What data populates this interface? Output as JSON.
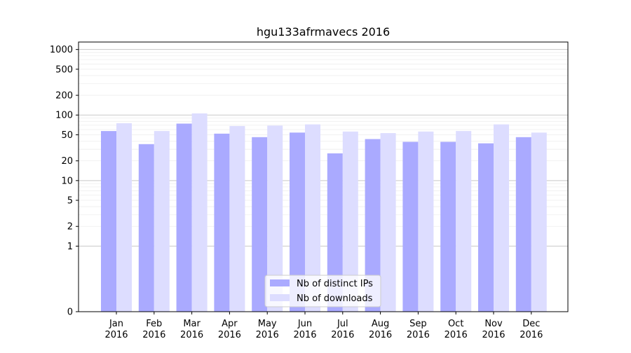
{
  "chart_data": {
    "type": "bar",
    "title": "hgu133afrmavecs 2016",
    "xlabel": "",
    "ylabel": "",
    "y_scale": "symlog",
    "ylim": [
      0,
      1300
    ],
    "y_ticks": [
      0,
      1,
      2,
      5,
      10,
      20,
      50,
      100,
      200,
      500,
      1000
    ],
    "y_tick_labels": [
      "0",
      "1",
      "2",
      "5",
      "10",
      "20",
      "50",
      "100",
      "200",
      "500",
      "1000"
    ],
    "grid": true,
    "legend_position": "lower-center",
    "categories": [
      "Jan\n2016",
      "Feb\n2016",
      "Mar\n2016",
      "Apr\n2016",
      "May\n2016",
      "Jun\n2016",
      "Jul\n2016",
      "Aug\n2016",
      "Sep\n2016",
      "Oct\n2016",
      "Nov\n2016",
      "Dec\n2016"
    ],
    "series": [
      {
        "name": "Nb of distinct IPs",
        "color": "#aaaaff",
        "values": [
          57,
          36,
          74,
          52,
          46,
          54,
          26,
          43,
          39,
          39,
          37,
          46
        ]
      },
      {
        "name": "Nb of downloads",
        "color": "#ddddff",
        "values": [
          75,
          57,
          106,
          68,
          69,
          72,
          56,
          53,
          56,
          57,
          72,
          54
        ]
      }
    ]
  }
}
